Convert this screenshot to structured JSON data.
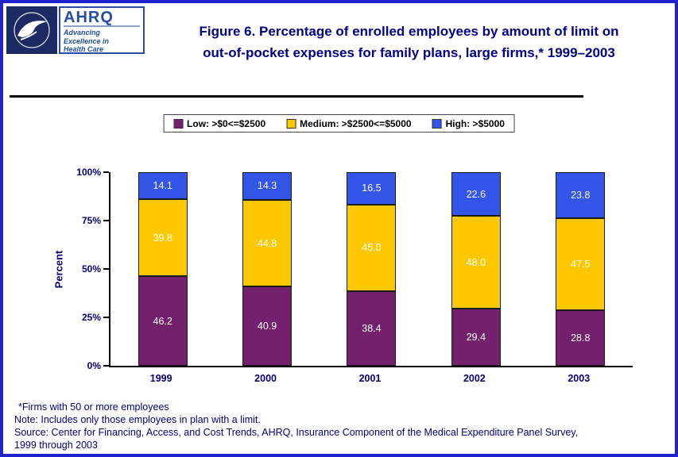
{
  "header": {
    "title_line1": "Figure 6. Percentage of enrolled employees by amount of limit on",
    "title_line2": "out-of-pocket expenses for family plans, large firms,* 1999–2003",
    "ahrq_logo": {
      "acronym": "AHRQ",
      "tagline_lines": [
        "Advancing",
        "Excellence in",
        "Health Care"
      ]
    }
  },
  "chart_data": {
    "type": "bar",
    "stacked": true,
    "categories": [
      "1999",
      "2000",
      "2001",
      "2002",
      "2003"
    ],
    "series": [
      {
        "name": "Low: >$0<=$2500",
        "color": "#73216d",
        "values": [
          46.2,
          40.9,
          38.4,
          29.4,
          28.8
        ]
      },
      {
        "name": "Medium: >$2500<=$5000",
        "color": "#fdc800",
        "values": [
          39.8,
          44.8,
          45.0,
          48.0,
          47.5
        ]
      },
      {
        "name": "High: >$5000",
        "color": "#3355e8",
        "values": [
          14.1,
          14.3,
          16.5,
          22.6,
          23.8
        ]
      }
    ],
    "ylabel": "Percent",
    "yticks": [
      "0%",
      "25%",
      "50%",
      "75%",
      "100%"
    ],
    "ylim": [
      0,
      100
    ],
    "legend_position": "top",
    "grid": false
  },
  "footnotes": [
    "*Firms with 50 or more employees",
    "Note: Includes only those employees in plan with a limit.",
    "Source: Center for Financing, Access, and Cost Trends, AHRQ, Insurance Component of the Medical Expenditure Panel Survey,",
    "1999 through 2003"
  ]
}
